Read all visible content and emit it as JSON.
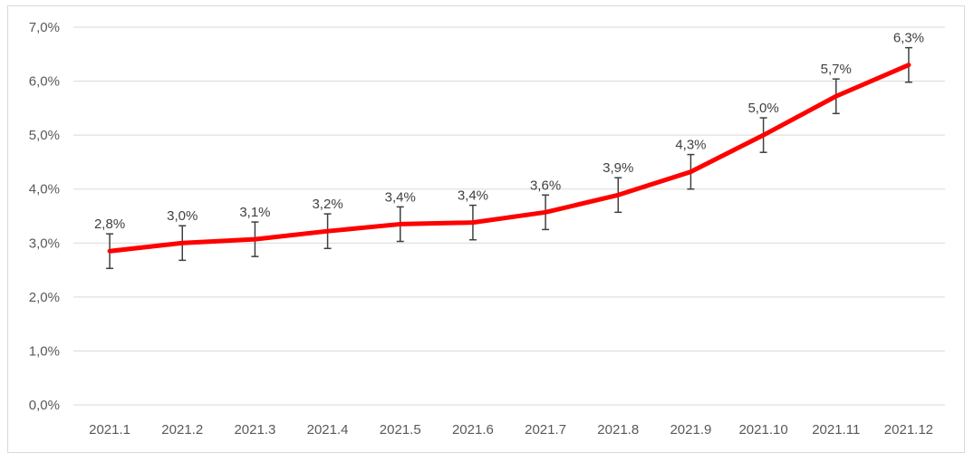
{
  "chart_data": {
    "type": "line",
    "categories": [
      "2021.1",
      "2021.2",
      "2021.3",
      "2021.4",
      "2021.5",
      "2021.6",
      "2021.7",
      "2021.8",
      "2021.9",
      "2021.10",
      "2021.11",
      "2021.12"
    ],
    "series": [
      {
        "values": [
          2.85,
          3.0,
          3.07,
          3.22,
          3.35,
          3.38,
          3.57,
          3.89,
          4.32,
          5.0,
          5.72,
          6.3
        ],
        "labels": [
          "2,8%",
          "3,0%",
          "3,1%",
          "3,2%",
          "3,4%",
          "3,4%",
          "3,6%",
          "3,9%",
          "4,3%",
          "5,0%",
          "5,7%",
          "6,3%"
        ],
        "error": 0.32,
        "color": "#ff0000"
      }
    ],
    "ylim": [
      0,
      7
    ],
    "yticks": [
      0,
      1,
      2,
      3,
      4,
      5,
      6,
      7
    ],
    "ytick_labels": [
      "0,0%",
      "1,0%",
      "2,0%",
      "3,0%",
      "4,0%",
      "5,0%",
      "6,0%",
      "7,0%"
    ],
    "grid": true,
    "title": "",
    "xlabel": "",
    "ylabel": ""
  },
  "colors": {
    "line": "#ff0000",
    "grid": "#d9d9d9",
    "error_bar": "#404040"
  }
}
